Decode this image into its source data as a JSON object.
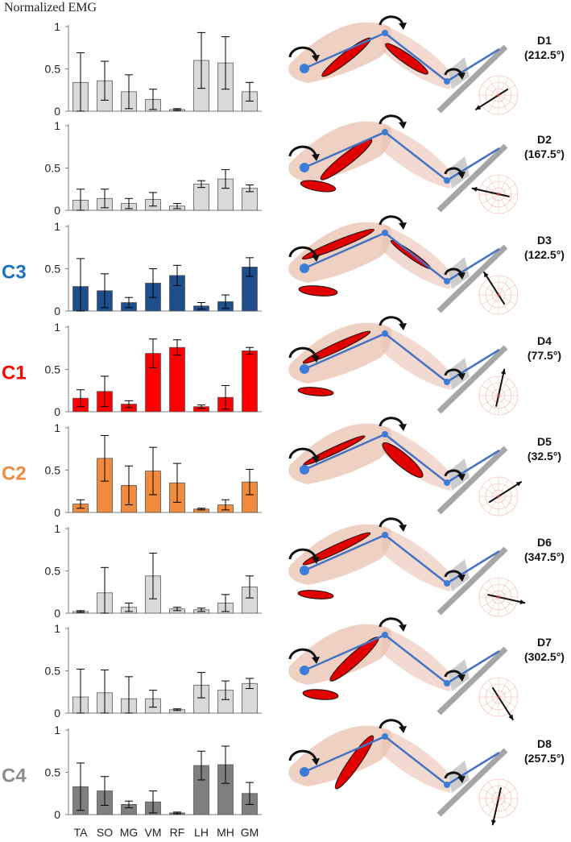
{
  "figure": {
    "y_axis_title": "Normalized EMG",
    "categories": [
      "TA",
      "SO",
      "MG",
      "VM",
      "RF",
      "LH",
      "MH",
      "GM"
    ],
    "y_ticks": [
      "0",
      "0.5",
      "1"
    ]
  },
  "chart_data": [
    {
      "type": "bar",
      "title": "",
      "direction": "D1",
      "angle_label": "(212.5°)",
      "cluster": "",
      "color": "#d9d9d9",
      "categories": [
        "TA",
        "SO",
        "MG",
        "VM",
        "RF",
        "LH",
        "MH",
        "GM"
      ],
      "values": [
        0.34,
        0.36,
        0.23,
        0.14,
        0.02,
        0.6,
        0.57,
        0.23
      ],
      "errors": [
        0.35,
        0.23,
        0.2,
        0.12,
        0.01,
        0.33,
        0.31,
        0.11
      ],
      "ylim": [
        0,
        1
      ],
      "xlabel": "",
      "ylabel": "Normalized EMG",
      "arrow_deg": 212.5
    },
    {
      "type": "bar",
      "title": "",
      "direction": "D2",
      "angle_label": "(167.5°)",
      "cluster": "",
      "color": "#d9d9d9",
      "categories": [
        "TA",
        "SO",
        "MG",
        "VM",
        "RF",
        "LH",
        "MH",
        "GM"
      ],
      "values": [
        0.12,
        0.14,
        0.08,
        0.13,
        0.05,
        0.31,
        0.37,
        0.26
      ],
      "errors": [
        0.13,
        0.11,
        0.06,
        0.08,
        0.03,
        0.04,
        0.11,
        0.04
      ],
      "ylim": [
        0,
        1
      ],
      "xlabel": "",
      "ylabel": "",
      "arrow_deg": 167.5
    },
    {
      "type": "bar",
      "title": "",
      "direction": "D3",
      "angle_label": "(122.5°)",
      "cluster": "C3",
      "color": "#1f4e8c",
      "categories": [
        "TA",
        "SO",
        "MG",
        "VM",
        "RF",
        "LH",
        "MH",
        "GM"
      ],
      "values": [
        0.29,
        0.24,
        0.1,
        0.33,
        0.42,
        0.06,
        0.11,
        0.52
      ],
      "errors": [
        0.33,
        0.2,
        0.06,
        0.17,
        0.12,
        0.04,
        0.08,
        0.11
      ],
      "ylim": [
        0,
        1
      ],
      "xlabel": "",
      "ylabel": "",
      "arrow_deg": 122.5
    },
    {
      "type": "bar",
      "title": "",
      "direction": "D4",
      "angle_label": "(77.5°)",
      "cluster": "C1",
      "color": "#ff0000",
      "categories": [
        "TA",
        "SO",
        "MG",
        "VM",
        "RF",
        "LH",
        "MH",
        "GM"
      ],
      "values": [
        0.16,
        0.24,
        0.09,
        0.69,
        0.76,
        0.06,
        0.17,
        0.72
      ],
      "errors": [
        0.1,
        0.18,
        0.04,
        0.17,
        0.09,
        0.02,
        0.14,
        0.04
      ],
      "ylim": [
        0,
        1
      ],
      "xlabel": "",
      "ylabel": "",
      "arrow_deg": 77.5
    },
    {
      "type": "bar",
      "title": "",
      "direction": "D5",
      "angle_label": "(32.5°)",
      "cluster": "C2",
      "color": "#f08a3c",
      "categories": [
        "TA",
        "SO",
        "MG",
        "VM",
        "RF",
        "LH",
        "MH",
        "GM"
      ],
      "values": [
        0.1,
        0.64,
        0.32,
        0.49,
        0.35,
        0.04,
        0.09,
        0.36
      ],
      "errors": [
        0.05,
        0.27,
        0.23,
        0.28,
        0.23,
        0.01,
        0.06,
        0.15
      ],
      "ylim": [
        0,
        1
      ],
      "xlabel": "",
      "ylabel": "",
      "arrow_deg": 32.5
    },
    {
      "type": "bar",
      "title": "",
      "direction": "D6",
      "angle_label": "(347.5°)",
      "cluster": "",
      "color": "#d9d9d9",
      "categories": [
        "TA",
        "SO",
        "MG",
        "VM",
        "RF",
        "LH",
        "MH",
        "GM"
      ],
      "values": [
        0.02,
        0.24,
        0.07,
        0.44,
        0.05,
        0.04,
        0.12,
        0.31
      ],
      "errors": [
        0.01,
        0.3,
        0.05,
        0.27,
        0.02,
        0.02,
        0.1,
        0.13
      ],
      "ylim": [
        0,
        1
      ],
      "xlabel": "",
      "ylabel": "",
      "arrow_deg": 347.5
    },
    {
      "type": "bar",
      "title": "",
      "direction": "D7",
      "angle_label": "(302.5°)",
      "cluster": "",
      "color": "#d9d9d9",
      "categories": [
        "TA",
        "SO",
        "MG",
        "VM",
        "RF",
        "LH",
        "MH",
        "GM"
      ],
      "values": [
        0.19,
        0.24,
        0.17,
        0.17,
        0.04,
        0.33,
        0.27,
        0.35
      ],
      "errors": [
        0.33,
        0.27,
        0.26,
        0.1,
        0.01,
        0.15,
        0.11,
        0.06
      ],
      "ylim": [
        0,
        1
      ],
      "xlabel": "",
      "ylabel": "",
      "arrow_deg": 302.5
    },
    {
      "type": "bar",
      "title": "",
      "direction": "D8",
      "angle_label": "(257.5°)",
      "cluster": "C4",
      "color": "#7f7f7f",
      "categories": [
        "TA",
        "SO",
        "MG",
        "VM",
        "RF",
        "LH",
        "MH",
        "GM"
      ],
      "values": [
        0.33,
        0.28,
        0.12,
        0.15,
        0.02,
        0.58,
        0.59,
        0.25
      ],
      "errors": [
        0.28,
        0.17,
        0.04,
        0.13,
        0.01,
        0.17,
        0.22,
        0.13
      ],
      "ylim": [
        0,
        1
      ],
      "xlabel": "",
      "ylabel": "",
      "arrow_deg": 257.5
    }
  ],
  "cluster_colors": {
    "C1": "#ff0000",
    "C2": "#f08a3c",
    "C3": "#1a73c5",
    "C4": "#8c8c8c"
  },
  "illustration": {
    "limb_color": "#e9c2b0",
    "link_color": "#4472c4",
    "joint_color": "#3b7dd8",
    "muscle_color": "#e00000",
    "support_color": "#a6a6a6"
  }
}
